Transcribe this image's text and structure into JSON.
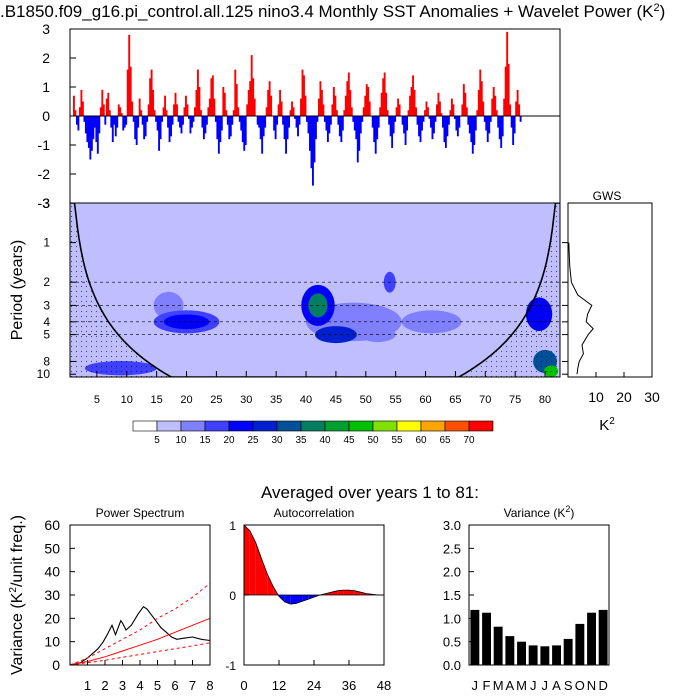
{
  "figure": {
    "title_main": ".B1850.f09_g16.pi_control.all.125 nino3.4 Monthly SST Anomalies + Wavelet Power (K",
    "title_sup": "2",
    "title_end": ")",
    "averaged_label": "Averaged over years 1 to 81:"
  },
  "chart_data": [
    {
      "id": "sst_anomaly",
      "type": "bar",
      "title": "nino3.4 Monthly SST Anomalies",
      "xlim": [
        0.5,
        82.5
      ],
      "ylim": [
        -3,
        3
      ],
      "yticks": [
        -3,
        -2,
        -1,
        0,
        1,
        2,
        3
      ],
      "positive_color": "#ff0000",
      "negative_color": "#0000ff",
      "samples_per_year": 4,
      "values": [
        0.7,
        0.2,
        -0.3,
        -0.5,
        0.3,
        0.9,
        0.5,
        -0.2,
        -0.6,
        -0.9,
        -1.1,
        -1.5,
        -1.2,
        -0.8,
        -0.4,
        -0.9,
        -1.3,
        -0.6,
        0.3,
        0.9,
        0.4,
        -0.3,
        0.6,
        0.8,
        0.2,
        -0.4,
        -0.9,
        -0.3,
        -0.7,
        -0.4,
        0.4,
        0.3,
        0.1,
        -0.5,
        -0.4,
        -0.3,
        1.6,
        2.8,
        1.7,
        0.5,
        -0.2,
        -0.8,
        -1.0,
        -0.4,
        0.6,
        0.2,
        -0.3,
        -0.8,
        -0.7,
        -0.2,
        0.4,
        1.3,
        1.6,
        0.9,
        0.2,
        -0.2,
        -0.5,
        -1.2,
        -0.8,
        -0.2,
        0.3,
        0.7,
        0.2,
        -0.4,
        -0.9,
        -0.7,
        -0.3,
        0.4,
        0.8,
        0.4,
        -0.2,
        -0.4,
        -0.6,
        -0.3,
        0.3,
        0.7,
        0.4,
        -0.1,
        -0.6,
        -0.4,
        -0.2,
        0.3,
        0.9,
        1.6,
        1.0,
        0.2,
        -0.4,
        -0.8,
        -0.6,
        -0.3,
        0.3,
        0.6,
        1.3,
        1.4,
        0.6,
        -0.2,
        -0.8,
        -1.3,
        -0.9,
        -0.5,
        1.0,
        0.8,
        0.2,
        -0.3,
        -0.8,
        -0.7,
        -0.3,
        0.2,
        1.6,
        1.1,
        0.3,
        -0.2,
        -0.5,
        -0.9,
        -1.2,
        -1.0,
        0.4,
        0.9,
        1.2,
        2.1,
        1.3,
        0.6,
        0.0,
        -0.3,
        -0.4,
        -0.8,
        -1.3,
        -0.7,
        -0.4,
        0.3,
        0.9,
        1.2,
        0.7,
        0.0,
        -0.5,
        -0.8,
        -0.3,
        0.4,
        0.9,
        0.5,
        -0.3,
        -0.8,
        -1.3,
        -0.8,
        -0.4,
        0.2,
        0.5,
        0.3,
        -0.1,
        -0.4,
        -0.7,
        -0.3,
        0.6,
        1.6,
        1.4,
        0.7,
        -0.2,
        -0.6,
        -1.2,
        -1.8,
        -2.4,
        -1.6,
        -0.8,
        -0.2,
        0.6,
        1.2,
        0.9,
        0.4,
        -0.2,
        -0.5,
        -0.9,
        -0.6,
        -0.3,
        0.4,
        1.0,
        0.7,
        0.2,
        -0.3,
        -0.7,
        -0.9,
        -0.5,
        0.2,
        0.7,
        1.2,
        1.5,
        0.9,
        0.3,
        -0.2,
        -0.5,
        -0.8,
        -1.6,
        -1.2,
        -0.6,
        -0.2,
        0.3,
        0.7,
        1.1,
        1.0,
        0.5,
        0.0,
        -0.4,
        -0.9,
        -1.3,
        -0.8,
        -0.4,
        0.3,
        0.8,
        1.3,
        1.5,
        0.8,
        0.2,
        -0.3,
        -0.7,
        -1.1,
        -0.6,
        -0.2,
        0.3,
        0.6,
        0.4,
        0.0,
        -0.3,
        -0.6,
        -1.0,
        -0.5,
        0.2,
        0.7,
        1.0,
        1.4,
        0.9,
        0.3,
        -0.3,
        -0.7,
        -0.9,
        -0.5,
        -0.2,
        0.2,
        0.5,
        0.3,
        -0.1,
        -0.4,
        -0.8,
        -0.6,
        -0.2,
        0.4,
        0.8,
        0.5,
        0.1,
        -0.4,
        -0.9,
        -1.1,
        -0.7,
        -0.3,
        0.2,
        0.6,
        0.4,
        -0.1,
        -0.5,
        -0.7,
        -0.4,
        0.0,
        0.4,
        1.1,
        0.8,
        0.3,
        -0.3,
        -0.6,
        -0.9,
        -1.3,
        -1.0,
        -0.5,
        0.2,
        0.9,
        1.6,
        1.2,
        0.5,
        -0.2,
        -0.5,
        -0.9,
        -0.6,
        -0.2,
        0.6,
        1.0,
        0.7,
        0.2,
        -0.4,
        -0.8,
        -1.1,
        -0.7,
        0.6,
        1.7,
        2.9,
        1.8,
        0.4,
        -0.4,
        -1.0,
        -0.6,
        0.5,
        0.9,
        0.4,
        -0.2
      ]
    },
    {
      "id": "wavelet_power",
      "type": "heatmap",
      "title": "Wavelet Power",
      "xlabel": "",
      "ylabel": "Period (years)",
      "xlim": [
        0.5,
        82.5
      ],
      "ylim": [
        0.5,
        10.5
      ],
      "xticks": [
        5,
        10,
        15,
        20,
        25,
        30,
        35,
        40,
        45,
        50,
        55,
        60,
        65,
        70,
        75,
        80
      ],
      "yticks": [
        1,
        2,
        3,
        4,
        5,
        8,
        10
      ],
      "dashed_periods": [
        2,
        3,
        4,
        5
      ],
      "background_level": 5,
      "blobs": [
        {
          "year": 20,
          "period": 4.0,
          "level": 15,
          "sx": 5.5,
          "sy": 0.9
        },
        {
          "year": 20,
          "period": 4.0,
          "level": 20,
          "sx": 3.8,
          "sy": 0.55
        },
        {
          "year": 17,
          "period": 3.0,
          "level": 10,
          "sx": 2.5,
          "sy": 0.8
        },
        {
          "year": 9,
          "period": 9.0,
          "level": 15,
          "sx": 6.0,
          "sy": 1.2
        },
        {
          "year": 42,
          "period": 3.0,
          "level": 20,
          "sx": 2.8,
          "sy": 1.3
        },
        {
          "year": 42,
          "period": 3.0,
          "level": 35,
          "sx": 1.6,
          "sy": 0.7
        },
        {
          "year": 45,
          "period": 5.0,
          "level": 25,
          "sx": 3.5,
          "sy": 0.8
        },
        {
          "year": 48,
          "period": 4.0,
          "level": 10,
          "sx": 8.0,
          "sy": 1.6
        },
        {
          "year": 52,
          "period": 5.0,
          "level": 10,
          "sx": 3.0,
          "sy": 0.7
        },
        {
          "year": 54,
          "period": 2.0,
          "level": 15,
          "sx": 1.0,
          "sy": 0.4
        },
        {
          "year": 61,
          "period": 4.0,
          "level": 10,
          "sx": 5.0,
          "sy": 0.9
        },
        {
          "year": 47,
          "period": 1.6,
          "level": 5,
          "sx": 10.0,
          "sy": 0.6
        },
        {
          "year": 79,
          "period": 3.5,
          "level": 20,
          "sx": 2.2,
          "sy": 1.2
        },
        {
          "year": 80,
          "period": 8.0,
          "level": 30,
          "sx": 2.0,
          "sy": 1.8
        },
        {
          "year": 81,
          "period": 9.5,
          "level": 45,
          "sx": 1.2,
          "sy": 1.0
        }
      ],
      "colorbar": {
        "levels": [
          "0",
          "5",
          "10",
          "15",
          "20",
          "25",
          "30",
          "35",
          "40",
          "45",
          "50",
          "55",
          "60",
          "65",
          "70"
        ],
        "colors": [
          "#ffffff",
          "#bfbfff",
          "#8080ff",
          "#4040ff",
          "#0000ff",
          "#0020d0",
          "#00509a",
          "#008060",
          "#00a030",
          "#00c000",
          "#80e000",
          "#ffff00",
          "#ffa500",
          "#ff5000",
          "#ff0000"
        ]
      }
    },
    {
      "id": "gws",
      "type": "line",
      "title": "GWS",
      "xlabel": "K",
      "xlabel_sup": "2",
      "xlim": [
        0,
        30
      ],
      "xticks": [
        10,
        20,
        30
      ],
      "periods": [
        1,
        1.5,
        2,
        2.5,
        3,
        3.5,
        4,
        4.5,
        5,
        6,
        7,
        8,
        9,
        10
      ],
      "values": [
        0.3,
        0.6,
        1.2,
        3.5,
        8.5,
        7.0,
        6.5,
        9.0,
        7.2,
        5.0,
        5.5,
        4.0,
        3.5,
        3.2
      ]
    },
    {
      "id": "power_spectrum",
      "type": "line",
      "title": "Power Spectrum",
      "ylabel": "Variance (K",
      "ylabel_sup": "2",
      "ylabel_end": "/unit freq.)",
      "xlim": [
        0,
        8
      ],
      "ylim": [
        0,
        60
      ],
      "xticks": [
        1,
        2,
        3,
        4,
        5,
        6,
        7,
        8
      ],
      "yticks": [
        0,
        10,
        20,
        30,
        40,
        50,
        60
      ],
      "series": [
        {
          "name": "spectrum",
          "color": "#000000",
          "x": [
            0,
            0.3,
            0.6,
            1.0,
            1.3,
            1.6,
            1.9,
            2.2,
            2.4,
            2.6,
            2.9,
            3.0,
            3.2,
            3.5,
            3.9,
            4.2,
            4.4,
            4.6,
            4.9,
            5.2,
            5.5,
            5.8,
            6.1,
            6.5,
            7.0,
            7.5,
            8.0
          ],
          "y": [
            0,
            0.5,
            1,
            3,
            5,
            7,
            10,
            14,
            17,
            13,
            19,
            18,
            15,
            17,
            22,
            25,
            24,
            22,
            19,
            16,
            14,
            12,
            11,
            11.5,
            12,
            11,
            10.5
          ]
        },
        {
          "name": "red noise",
          "color": "#ff0000",
          "dash": "",
          "x": [
            0,
            1,
            2,
            3,
            4,
            5,
            6,
            7,
            8
          ],
          "y": [
            0,
            1.5,
            3.5,
            6,
            8.5,
            11,
            14,
            17,
            20
          ]
        },
        {
          "name": "95% upper",
          "color": "#ff0000",
          "dash": "3,3",
          "x": [
            0,
            1,
            2,
            3,
            4,
            5,
            6,
            7,
            8
          ],
          "y": [
            0,
            3,
            7,
            11,
            15,
            20,
            24,
            29,
            35
          ]
        },
        {
          "name": "95% lower",
          "color": "#ff0000",
          "dash": "3,3",
          "x": [
            0,
            1,
            2,
            3,
            4,
            5,
            6,
            7,
            8
          ],
          "y": [
            0,
            1,
            2,
            3.3,
            4.5,
            5.8,
            7,
            8.2,
            9.5
          ]
        }
      ]
    },
    {
      "id": "autocorrelation",
      "type": "area",
      "title": "Autocorrelation",
      "xlim": [
        0,
        48
      ],
      "ylim": [
        -1,
        1
      ],
      "xticks": [
        0,
        12,
        24,
        36,
        48
      ],
      "yticks": [
        -1,
        0,
        1
      ],
      "positive_color": "#ff0000",
      "negative_color": "#0000ff",
      "x": [
        0,
        2,
        4,
        6,
        8,
        10,
        12,
        14,
        16,
        18,
        20,
        22,
        24,
        26,
        28,
        30,
        32,
        34,
        36,
        38,
        40,
        42,
        44,
        46,
        48
      ],
      "y": [
        1.0,
        0.92,
        0.75,
        0.52,
        0.3,
        0.12,
        -0.02,
        -0.1,
        -0.13,
        -0.12,
        -0.09,
        -0.06,
        -0.03,
        0.0,
        0.02,
        0.04,
        0.06,
        0.07,
        0.07,
        0.06,
        0.04,
        0.02,
        0.01,
        0.0,
        0.0
      ]
    },
    {
      "id": "monthly_variance",
      "type": "bar",
      "title": "Variance (K",
      "title_sup": "2",
      "title_end": ")",
      "ylim": [
        0,
        3.0
      ],
      "yticks": [
        "0.0",
        "0.5",
        "1.0",
        "1.5",
        "2.0",
        "2.5",
        "3.0"
      ],
      "categories": [
        "J",
        "F",
        "M",
        "A",
        "M",
        "J",
        "J",
        "A",
        "S",
        "O",
        "N",
        "D"
      ],
      "values": [
        1.18,
        1.12,
        0.82,
        0.62,
        0.5,
        0.42,
        0.4,
        0.42,
        0.56,
        0.88,
        1.12,
        1.18
      ],
      "color": "#000000"
    }
  ]
}
